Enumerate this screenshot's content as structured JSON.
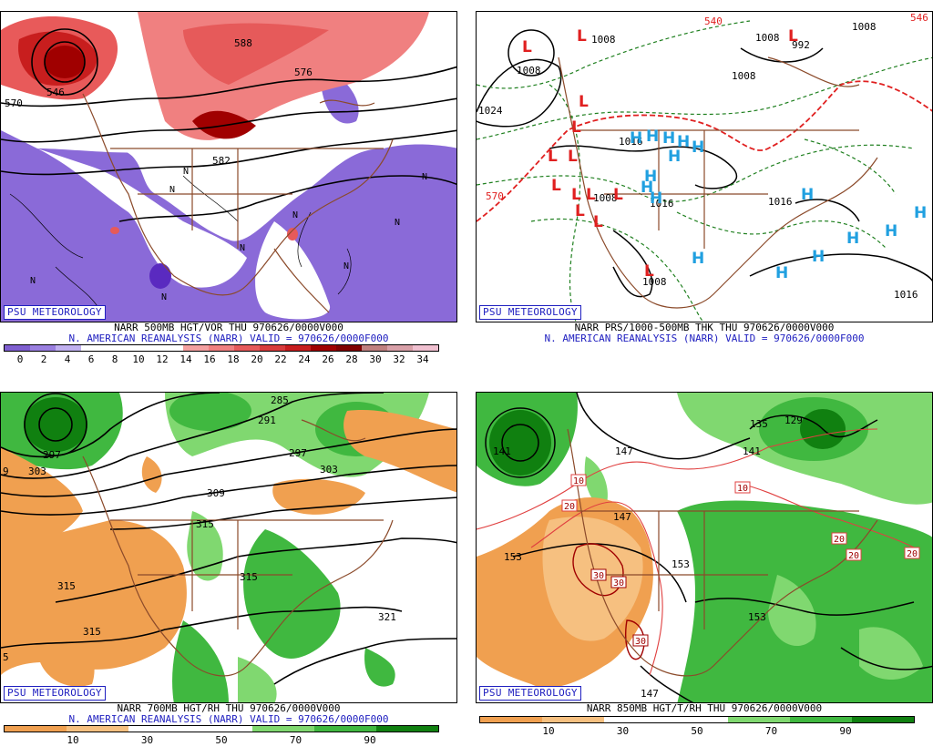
{
  "badge": "PSU METEOROLOGY",
  "panels": [
    {
      "id": "500mb",
      "caption_line1": "NARR 500MB HGT/VOR THU 970626/0000V000",
      "caption_line2": "N. AMERICAN REANALYSIS (NARR) VALID = 970626/0000F000",
      "contour_labels": [
        "570",
        "576",
        "582",
        "588",
        "546"
      ],
      "vort_marks": [
        "N",
        "N",
        "N",
        "N",
        "N",
        "N",
        "N",
        "N",
        "N"
      ],
      "colorbar": {
        "ticks": [
          "0",
          "2",
          "4",
          "6",
          "8",
          "10",
          "12",
          "14",
          "16",
          "18",
          "20",
          "22",
          "24",
          "26",
          "28",
          "30",
          "32",
          "34"
        ],
        "colors": [
          "#7f5fd0",
          "#9a7fe0",
          "#c0b0f0",
          "#ffffff",
          "#ffffff",
          "#ffffff",
          "#ffffff",
          "#f4a0a0",
          "#f08080",
          "#e65a5a",
          "#d83c3c",
          "#c81e1e",
          "#a00000",
          "#800000",
          "#c08080",
          "#d8a0a8",
          "#f0c0d0"
        ]
      }
    },
    {
      "id": "thickness",
      "caption_line1": "NARR PRS/1000-500MB THK THU 970626/0000V000",
      "caption_line2": "N. AMERICAN REANALYSIS (NARR) VALID = 970626/0000F000",
      "pressure_labels": [
        "1008",
        "1008",
        "1008",
        "1008",
        "1008",
        "992",
        "1008",
        "1024",
        "1016",
        "1016",
        "1016",
        "1008",
        "1016"
      ],
      "thickness_labels": [
        "540",
        "570",
        "546"
      ],
      "low_markers": [
        "L",
        "L",
        "L",
        "L",
        "L",
        "L",
        "L",
        "L",
        "L",
        "L",
        "L",
        "L",
        "L",
        "L"
      ],
      "high_markers": [
        "H",
        "H",
        "H",
        "H",
        "H",
        "H",
        "H",
        "H",
        "H",
        "H",
        "H",
        "H",
        "H",
        "H",
        "H",
        "H"
      ]
    },
    {
      "id": "700mb",
      "caption_line1": "NARR 700MB HGT/RH THU 970626/0000V000",
      "caption_line2": "N. AMERICAN REANALYSIS (NARR) VALID = 970626/0000F000",
      "contour_labels": [
        "285",
        "291",
        "297",
        "297",
        "303",
        "303",
        "309",
        "315",
        "315",
        "315",
        "315",
        "321",
        "9",
        "5"
      ],
      "colorbar": {
        "ticks": [
          "10",
          "30",
          "50",
          "70",
          "90"
        ],
        "colors": [
          "#f0a050",
          "#f6c080",
          "#ffffff",
          "#ffffff",
          "#80d870",
          "#40b840",
          "#108010"
        ]
      }
    },
    {
      "id": "850mb",
      "caption_line1": "NARR 850MB HGT/T/RH THU 970626/0000V000",
      "contour_labels": [
        "141",
        "147",
        "141",
        "135",
        "129",
        "153",
        "153",
        "153",
        "147",
        "147"
      ],
      "temp_labels": [
        "10",
        "10",
        "20",
        "20",
        "20",
        "20",
        "30",
        "30",
        "30"
      ],
      "colorbar": {
        "ticks": [
          "10",
          "30",
          "50",
          "70",
          "90"
        ],
        "colors": [
          "#f0a050",
          "#f6c080",
          "#ffffff",
          "#ffffff",
          "#80d870",
          "#40b840",
          "#108010"
        ]
      }
    }
  ]
}
